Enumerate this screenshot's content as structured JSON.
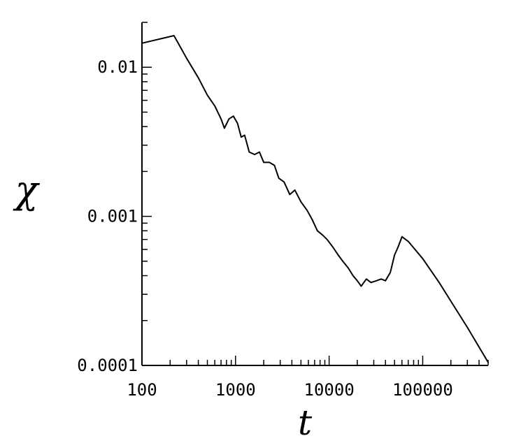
{
  "chart_data": {
    "type": "line",
    "title": "",
    "xlabel": "t",
    "ylabel": "χ",
    "xscale": "log",
    "yscale": "log",
    "xlim": [
      100,
      500000
    ],
    "ylim": [
      0.0001,
      0.02
    ],
    "grid": false,
    "legend": "none",
    "x_tick_labels": [
      {
        "value": 100,
        "label": "100"
      },
      {
        "value": 1000,
        "label": "1000"
      },
      {
        "value": 10000,
        "label": "10000"
      },
      {
        "value": 100000,
        "label": "100000"
      }
    ],
    "y_tick_labels": [
      {
        "value": 0.0001,
        "label": "0.0001"
      },
      {
        "value": 0.001,
        "label": "0.001"
      },
      {
        "value": 0.01,
        "label": "0.01"
      }
    ],
    "series": [
      {
        "x": [
          100,
          220,
          300,
          400,
          500,
          600,
          700,
          760,
          850,
          950,
          1050,
          1150,
          1250,
          1400,
          1600,
          1800,
          2000,
          2300,
          2600,
          2900,
          3300,
          3800,
          4300,
          5000,
          5800,
          6600,
          7500,
          8500,
          9500,
          11000,
          12500,
          14000,
          16000,
          18000,
          20000,
          22000,
          25000,
          28000,
          32000,
          36000,
          40000,
          45000,
          50000,
          55000,
          60000,
          70000,
          100000,
          150000,
          200000,
          300000,
          500000
        ],
        "y": [
          0.0145,
          0.0163,
          0.0115,
          0.0085,
          0.0065,
          0.0055,
          0.0045,
          0.0039,
          0.0045,
          0.0047,
          0.0042,
          0.0034,
          0.0035,
          0.0027,
          0.0026,
          0.0027,
          0.0023,
          0.0023,
          0.0022,
          0.0018,
          0.0017,
          0.0014,
          0.0015,
          0.00125,
          0.0011,
          0.00095,
          0.0008,
          0.00075,
          0.0007,
          0.00062,
          0.00055,
          0.0005,
          0.00045,
          0.0004,
          0.00037,
          0.00034,
          0.00038,
          0.00036,
          0.00037,
          0.00038,
          0.00037,
          0.00042,
          0.00055,
          0.00063,
          0.00073,
          0.00068,
          0.00052,
          0.00036,
          0.00027,
          0.00018,
          0.000105
        ]
      }
    ]
  }
}
